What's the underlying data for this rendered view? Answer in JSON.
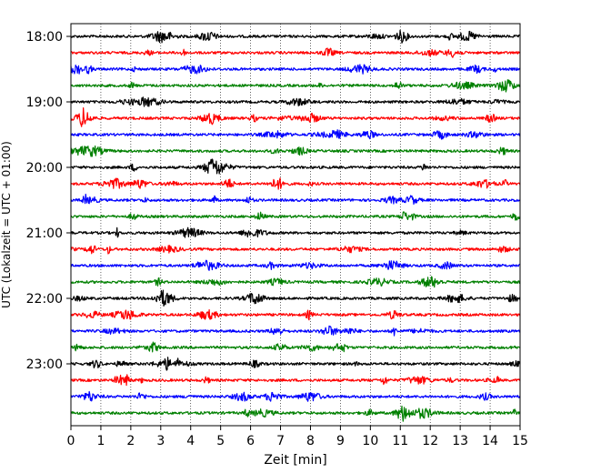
{
  "chart_data": {
    "type": "line",
    "title": "",
    "xlabel": "Zeit  [min]",
    "ylabel": "UTC (Lokalzeit = UTC + 01:00)",
    "xlim": [
      0,
      15
    ],
    "x_ticks": [
      "0",
      "1",
      "2",
      "3",
      "4",
      "5",
      "6",
      "7",
      "8",
      "9",
      "10",
      "11",
      "12",
      "13",
      "14",
      "15"
    ],
    "y_tick_labels": [
      "18:00",
      "19:00",
      "20:00",
      "21:00",
      "22:00",
      "23:00"
    ],
    "grid": "vertical dotted",
    "trace_interval_min": 15,
    "traces_start": "18:00",
    "trace_colors": [
      "#000000",
      "#ff0000",
      "#0000ff",
      "#008000"
    ],
    "traces": [
      "18:00",
      "18:15",
      "18:30",
      "18:45",
      "19:00",
      "19:15",
      "19:30",
      "19:45",
      "20:00",
      "20:15",
      "20:30",
      "20:45",
      "21:00",
      "21:15",
      "21:30",
      "21:45",
      "22:00",
      "22:15",
      "22:30",
      "22:45",
      "23:00",
      "23:15",
      "23:30",
      "23:45"
    ]
  }
}
